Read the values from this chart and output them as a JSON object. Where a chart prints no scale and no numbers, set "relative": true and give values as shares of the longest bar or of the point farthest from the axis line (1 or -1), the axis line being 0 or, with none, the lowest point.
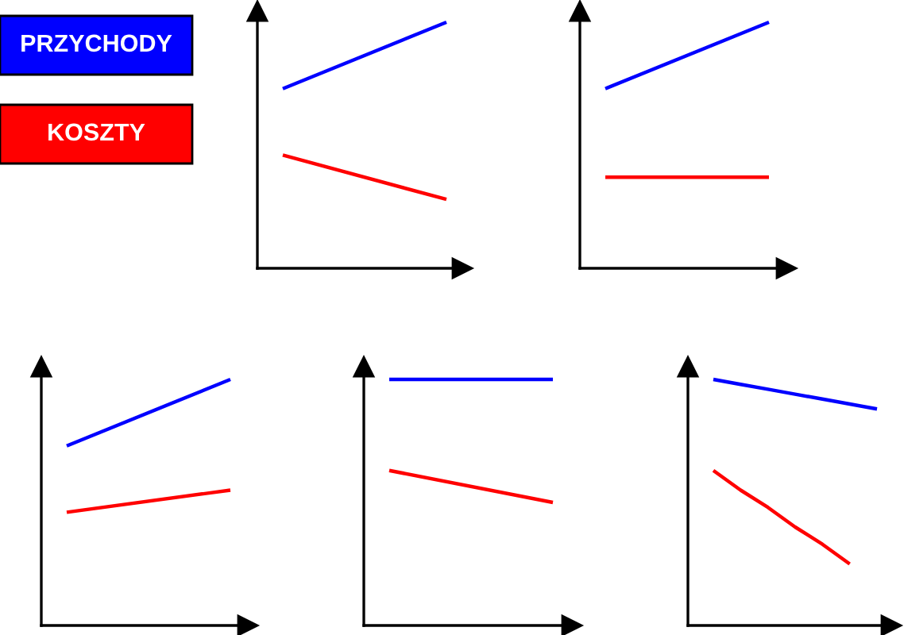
{
  "chart_data": [
    {
      "type": "line",
      "relative": true,
      "categories": [
        null,
        null
      ],
      "series": [
        {
          "name": "PRZYCHODY",
          "color": "#0000ff",
          "values": [
            0.73,
            1
          ]
        },
        {
          "name": "KOSZTY",
          "color": "#ff0000",
          "values": [
            0.46,
            0.28
          ]
        }
      ],
      "legend": "left"
    },
    {
      "type": "line",
      "relative": true,
      "categories": [
        null,
        null
      ],
      "series": [
        {
          "color": "#0000ff",
          "values": [
            0.73,
            1
          ]
        },
        {
          "color": "#ff0000",
          "values": [
            0.37,
            0.37
          ]
        }
      ]
    },
    {
      "type": "line",
      "relative": true,
      "categories": [
        null,
        null
      ],
      "series": [
        {
          "color": "#0000ff",
          "values": [
            0.73,
            1
          ]
        },
        {
          "color": "#ff0000",
          "values": [
            0.46,
            0.55
          ]
        }
      ]
    },
    {
      "type": "line",
      "relative": true,
      "categories": [
        null,
        null
      ],
      "series": [
        {
          "color": "#0000ff",
          "values": [
            1,
            1
          ]
        },
        {
          "color": "#ff0000",
          "values": [
            0.63,
            0.5
          ]
        }
      ]
    },
    {
      "type": "line",
      "relative": true,
      "categories": [
        null,
        null,
        null,
        null,
        null,
        null,
        null
      ],
      "series": [
        {
          "color": "#0000ff",
          "values": [
            1,
            0.98,
            0.96,
            0.94,
            0.92,
            0.9,
            0.88
          ]
        },
        {
          "color": "#ff0000",
          "values": [
            0.63,
            0.55,
            0.48,
            0.4,
            0.33,
            0.25,
            null
          ]
        }
      ]
    }
  ]
}
